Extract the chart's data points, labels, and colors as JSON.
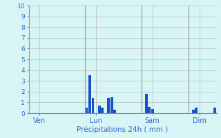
{
  "xlabel": "Précipitations 24h ( mm )",
  "background_color": "#d8f5f5",
  "bar_color": "#1a4fcc",
  "grid_color": "#bbbbbb",
  "ylim": [
    0,
    10
  ],
  "yticks": [
    0,
    1,
    2,
    3,
    4,
    5,
    6,
    7,
    8,
    9,
    10
  ],
  "tick_label_color": "#3366cc",
  "xlabel_color": "#3366cc",
  "xtick_label_color": "#3366cc",
  "day_labels": [
    "Ven",
    "Lun",
    "Sam",
    "Dim"
  ],
  "day_positions": [
    3,
    21,
    39,
    54
  ],
  "vline_positions": [
    0,
    18,
    36,
    51
  ],
  "num_bars": 60,
  "bars": [
    0,
    0,
    0,
    0,
    0,
    0,
    0,
    0,
    0,
    0,
    0,
    0,
    0,
    0,
    0,
    0,
    0,
    0,
    0.5,
    3.5,
    1.4,
    0,
    0.7,
    0.5,
    0,
    1.4,
    1.5,
    0.35,
    0,
    0,
    0,
    0,
    0,
    0,
    0,
    0,
    0,
    1.8,
    0.6,
    0.4,
    0,
    0,
    0,
    0,
    0,
    0,
    0,
    0,
    0,
    0,
    0,
    0,
    0.35,
    0.5,
    0,
    0,
    0,
    0,
    0,
    0.5
  ]
}
